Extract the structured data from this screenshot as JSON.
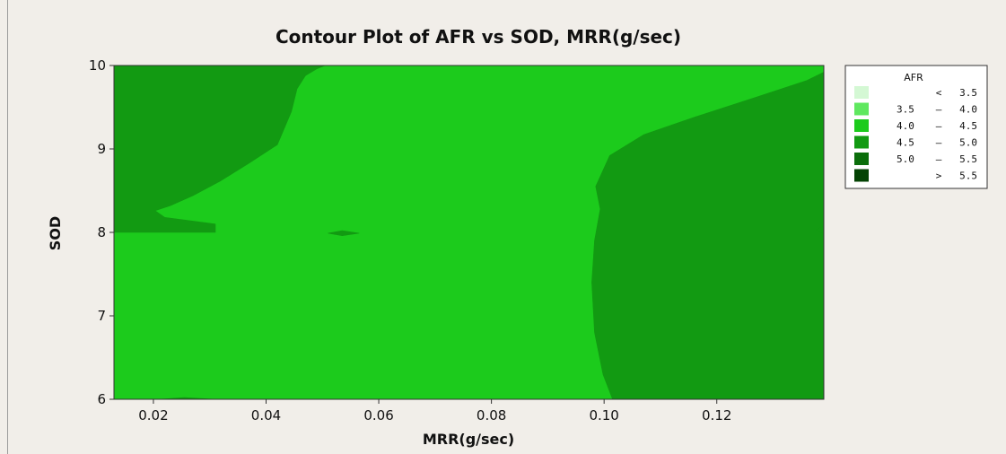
{
  "chart_data": {
    "type": "contour",
    "title": "Contour Plot of AFR vs SOD, MRR(g/sec)",
    "xlabel": "MRR(g/sec)",
    "ylabel": "SOD",
    "xlim": [
      0.013,
      0.139
    ],
    "ylim": [
      6,
      10
    ],
    "x_ticks": [
      0.02,
      0.04,
      0.06,
      0.08,
      0.1,
      0.12
    ],
    "x_tick_labels": [
      "0.02",
      "0.04",
      "0.06",
      "0.08",
      "0.10",
      "0.12"
    ],
    "y_ticks": [
      6,
      7,
      8,
      9,
      10
    ],
    "y_tick_labels": [
      "6",
      "7",
      "8",
      "9",
      "10"
    ],
    "legend": {
      "title": "AFR",
      "placement": "right",
      "entries": [
        {
          "op": "<",
          "lo": "",
          "hi": "3.5",
          "color": "#d4f8d4"
        },
        {
          "op": "",
          "lo": "3.5",
          "hi": "4.0",
          "color": "#5fe85f"
        },
        {
          "op": "",
          "lo": "4.0",
          "hi": "4.5",
          "color": "#1ccb1c"
        },
        {
          "op": "",
          "lo": "4.5",
          "hi": "5.0",
          "color": "#129a12"
        },
        {
          "op": "",
          "lo": "5.0",
          "hi": "5.5",
          "color": "#0b6e0b"
        },
        {
          "op": ">",
          "lo": "",
          "hi": "5.5",
          "color": "#044304"
        }
      ]
    },
    "regions": [
      {
        "level": "4.0 – 4.5",
        "color": "#1ccb1c",
        "points": [
          [
            0.013,
            6
          ],
          [
            0.139,
            6
          ],
          [
            0.139,
            10
          ],
          [
            0.013,
            10
          ]
        ]
      },
      {
        "level": "4.5 – 5.0",
        "color": "#129a12",
        "points": [
          [
            0.013,
            10
          ],
          [
            0.0505,
            10
          ],
          [
            0.049,
            9.96
          ],
          [
            0.047,
            9.88
          ],
          [
            0.0455,
            9.72
          ],
          [
            0.0445,
            9.45
          ],
          [
            0.042,
            9.05
          ],
          [
            0.037,
            8.83
          ],
          [
            0.032,
            8.62
          ],
          [
            0.027,
            8.44
          ],
          [
            0.023,
            8.32
          ],
          [
            0.0203,
            8.26
          ],
          [
            0.022,
            8.18
          ],
          [
            0.031,
            8.1
          ],
          [
            0.031,
            8.0
          ],
          [
            0.013,
            8.0
          ]
        ]
      },
      {
        "level": "4.5 – 5.0",
        "color": "#129a12",
        "points": [
          [
            0.139,
            9.92
          ],
          [
            0.136,
            9.82
          ],
          [
            0.127,
            9.62
          ],
          [
            0.116,
            9.38
          ],
          [
            0.107,
            9.17
          ],
          [
            0.101,
            8.92
          ],
          [
            0.0985,
            8.55
          ],
          [
            0.0993,
            8.28
          ],
          [
            0.0983,
            7.9
          ],
          [
            0.0978,
            7.4
          ],
          [
            0.0983,
            6.8
          ],
          [
            0.0998,
            6.3
          ],
          [
            0.1015,
            6.0
          ],
          [
            0.139,
            6.0
          ]
        ]
      },
      {
        "level": "4.5 – 5.0",
        "color": "#129a12",
        "points": [
          [
            0.051,
            7.99
          ],
          [
            0.0535,
            7.96
          ],
          [
            0.0565,
            7.99
          ],
          [
            0.0535,
            8.02
          ]
        ]
      },
      {
        "level": "4.5 – 5.0",
        "color": "#129a12",
        "points": [
          [
            0.021,
            6.0
          ],
          [
            0.0255,
            6.02
          ],
          [
            0.031,
            6.0
          ]
        ]
      },
      {
        "level": "4.5 – 5.0",
        "color": "#129a12",
        "points": [
          [
            0.139,
            8.08
          ],
          [
            0.1375,
            8.03
          ],
          [
            0.139,
            7.98
          ]
        ]
      }
    ]
  }
}
